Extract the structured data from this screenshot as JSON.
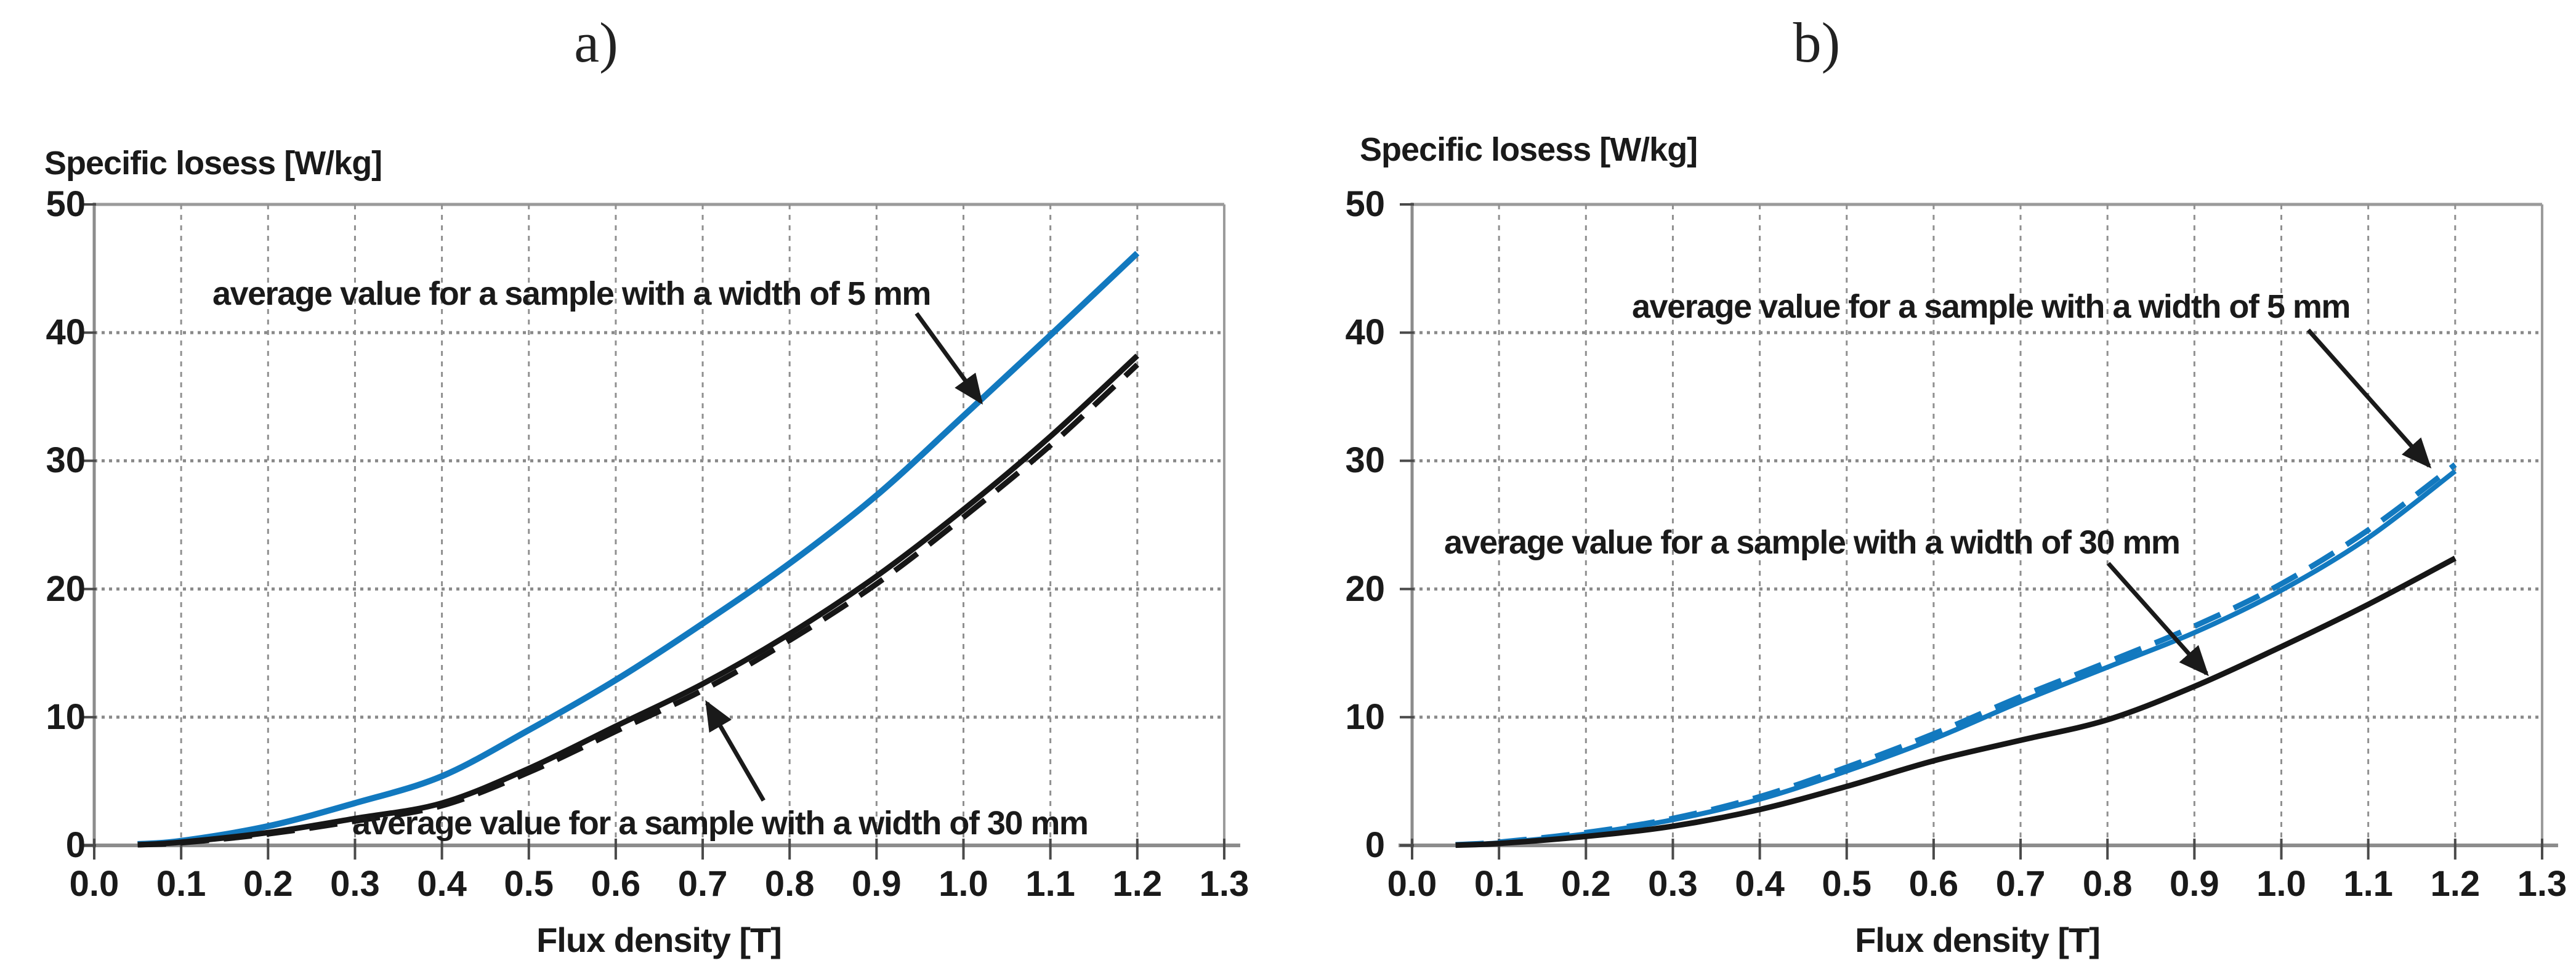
{
  "colors": {
    "blue_curve": "#1279bf",
    "black_curve": "#161616",
    "grid": "#8a8a8a",
    "axis": "#8c8c8c",
    "text": "#1a1a1a",
    "background": "#ffffff"
  },
  "panels": [
    {
      "label": "a)",
      "y_axis_title": "Specific losess [W/kg]",
      "x_axis_title": "Flux density [T]"
    },
    {
      "label": "b)",
      "y_axis_title": "Specific losess [W/kg]",
      "x_axis_title": "Flux density [T]"
    }
  ],
  "chart_data": [
    {
      "type": "line",
      "title": "a)",
      "xlabel": "Flux density [T]",
      "ylabel": "Specific losess [W/kg]",
      "xlim": [
        0.0,
        1.3
      ],
      "ylim": [
        0,
        50
      ],
      "x_ticks": [
        0.0,
        0.1,
        0.2,
        0.3,
        0.4,
        0.5,
        0.6,
        0.7,
        0.8,
        0.9,
        1.0,
        1.1,
        1.2,
        1.3
      ],
      "x_tick_labels": [
        "0.0",
        "0.1",
        "0.2",
        "0.3",
        "0.4",
        "0.5",
        "0.6",
        "0.7",
        "0.8",
        "0.9",
        "1.0",
        "1.1",
        "1.2",
        "1.3"
      ],
      "y_ticks": [
        0,
        10,
        20,
        30,
        40,
        50
      ],
      "y_tick_labels": [
        "0",
        "10",
        "20",
        "30",
        "40",
        "50"
      ],
      "grid": {
        "vertical": "dashed",
        "horizontal": "dotted"
      },
      "legend": "none (arrow annotations instead)",
      "series": [
        {
          "name": "average value for a sample with a width of 5 mm",
          "color": "#1279bf",
          "style": "solid",
          "width": 10,
          "x": [
            0.05,
            0.1,
            0.2,
            0.3,
            0.4,
            0.5,
            0.6,
            0.7,
            0.8,
            0.9,
            1.0,
            1.1,
            1.2
          ],
          "y": [
            0.1,
            0.35,
            1.5,
            3.3,
            5.4,
            9.0,
            12.9,
            17.3,
            22.0,
            27.3,
            33.5,
            39.8,
            46.2
          ]
        },
        {
          "name": "average value for a sample with a width of 30 mm",
          "color": "#161616",
          "style": "solid",
          "width": 9,
          "x": [
            0.05,
            0.1,
            0.2,
            0.3,
            0.4,
            0.5,
            0.6,
            0.7,
            0.8,
            0.9,
            1.0,
            1.1,
            1.2
          ],
          "y": [
            0.05,
            0.25,
            1.0,
            2.1,
            3.3,
            6.0,
            9.3,
            12.6,
            16.5,
            21.0,
            26.2,
            31.9,
            38.2
          ]
        },
        {
          "name": "average value for a sample with a width of 30 mm (dashed, nearly coincident)",
          "color": "#161616",
          "style": "dashed",
          "width": 9,
          "x": [
            0.05,
            0.1,
            0.2,
            0.3,
            0.4,
            0.5,
            0.6,
            0.7,
            0.8,
            0.9,
            1.0,
            1.1,
            1.2
          ],
          "y": [
            0.05,
            0.2,
            0.9,
            1.9,
            3.1,
            5.7,
            8.9,
            12.1,
            16.0,
            20.4,
            25.6,
            31.2,
            37.5
          ]
        }
      ],
      "annotations": [
        {
          "text": "average value for a sample with a width of 5 mm",
          "arrow_from": [
            0.946,
            41.5
          ],
          "arrow_to": [
            1.02,
            34.6
          ]
        },
        {
          "text": "average value for a sample with a width of 30 mm",
          "arrow_from": [
            0.77,
            3.5
          ],
          "arrow_to": [
            0.705,
            11.1
          ]
        }
      ]
    },
    {
      "type": "line",
      "title": "b)",
      "xlabel": "Flux density [T]",
      "ylabel": "Specific losess [W/kg]",
      "xlim": [
        0.0,
        1.3
      ],
      "ylim": [
        0,
        50
      ],
      "x_ticks": [
        0.0,
        0.1,
        0.2,
        0.3,
        0.4,
        0.5,
        0.6,
        0.7,
        0.8,
        0.9,
        1.0,
        1.1,
        1.2,
        1.3
      ],
      "x_tick_labels": [
        "0.0",
        "0.1",
        "0.2",
        "0.3",
        "0.4",
        "0.5",
        "0.6",
        "0.7",
        "0.8",
        "0.9",
        "1.0",
        "1.1",
        "1.2",
        "1.3"
      ],
      "y_ticks": [
        0,
        10,
        20,
        30,
        40,
        50
      ],
      "y_tick_labels": [
        "0",
        "10",
        "20",
        "30",
        "40",
        "50"
      ],
      "grid": {
        "vertical": "dashed",
        "horizontal": "dotted"
      },
      "legend": "none (arrow annotations instead)",
      "series": [
        {
          "name": "average value for a sample with a width of 5 mm",
          "color": "#1279bf",
          "style": "solid",
          "width": 8,
          "x": [
            0.05,
            0.1,
            0.2,
            0.3,
            0.4,
            0.5,
            0.6,
            0.7,
            0.8,
            0.9,
            1.0,
            1.1,
            1.2
          ],
          "y": [
            0.05,
            0.2,
            0.9,
            2.0,
            3.6,
            5.8,
            8.3,
            11.2,
            13.9,
            16.6,
            19.9,
            24.0,
            29.2
          ]
        },
        {
          "name": "average value for a sample with a width of 5 mm (dashed, nearly coincident)",
          "color": "#1279bf",
          "style": "dashed",
          "width": 9,
          "x": [
            0.05,
            0.1,
            0.2,
            0.3,
            0.4,
            0.5,
            0.6,
            0.7,
            0.8,
            0.9,
            1.0,
            1.1,
            1.2
          ],
          "y": [
            0.05,
            0.25,
            1.0,
            2.1,
            3.8,
            6.1,
            8.7,
            11.6,
            14.3,
            17.1,
            20.4,
            24.6,
            29.7
          ]
        },
        {
          "name": "average value for a sample with a width of 30 mm",
          "color": "#161616",
          "style": "solid",
          "width": 9,
          "x": [
            0.05,
            0.1,
            0.2,
            0.3,
            0.4,
            0.5,
            0.6,
            0.7,
            0.8,
            0.9,
            1.0,
            1.1,
            1.2
          ],
          "y": [
            0.02,
            0.15,
            0.7,
            1.5,
            2.8,
            4.6,
            6.6,
            8.2,
            9.8,
            12.4,
            15.5,
            18.8,
            22.4
          ]
        }
      ],
      "annotations": [
        {
          "text": "average value for a sample with a width of 5 mm",
          "arrow_from": [
            1.031,
            40.2
          ],
          "arrow_to": [
            1.17,
            29.6
          ]
        },
        {
          "text": "average value for a sample with a width of 30 mm",
          "arrow_from": [
            0.801,
            22.0
          ],
          "arrow_to": [
            0.914,
            13.4
          ]
        }
      ]
    }
  ]
}
